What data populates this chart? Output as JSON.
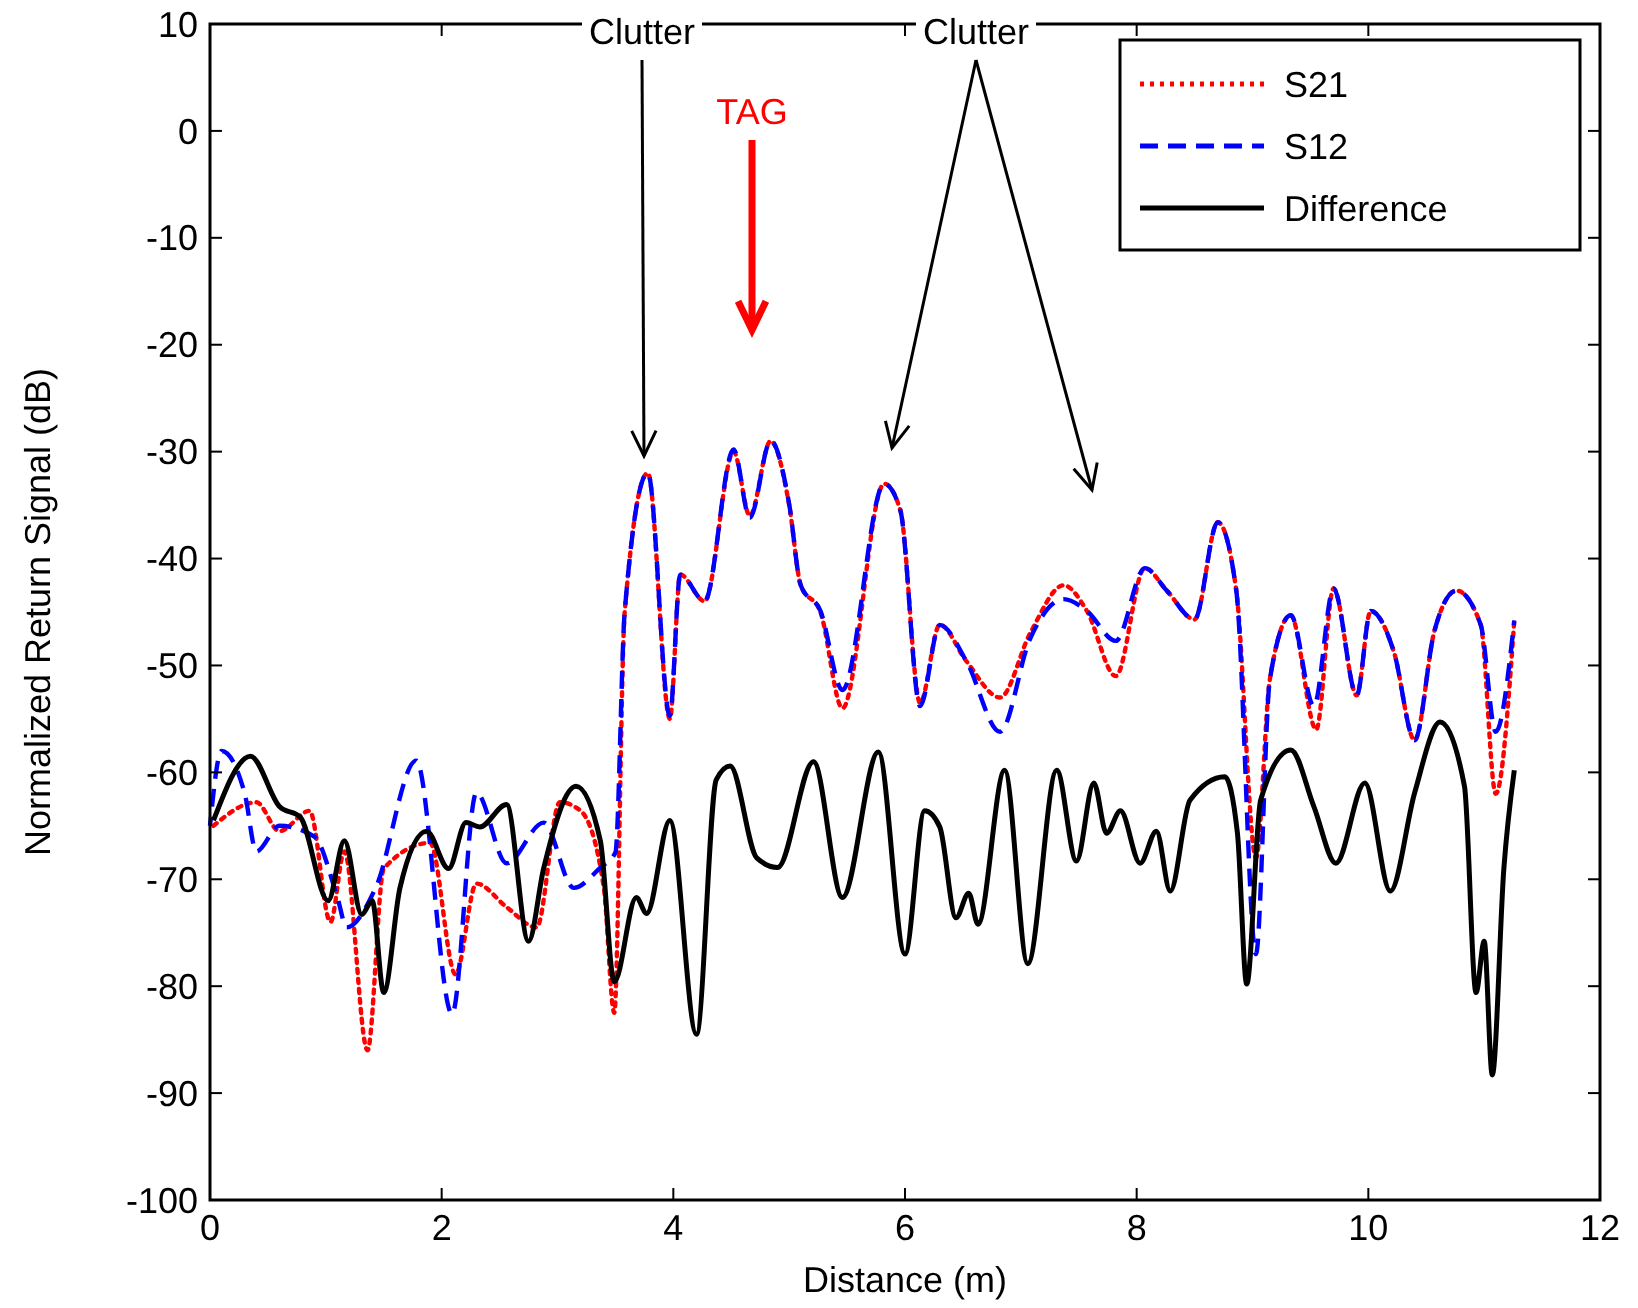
{
  "chart_data": {
    "type": "line",
    "xlabel": "Distance (m)",
    "ylabel": "Normalized Return Signal (dB)",
    "xlim": [
      0,
      12
    ],
    "ylim": [
      -100,
      10
    ],
    "xticks": [
      0,
      2,
      4,
      6,
      8,
      10,
      12
    ],
    "yticks": [
      -100,
      -90,
      -80,
      -70,
      -60,
      -50,
      -40,
      -30,
      -20,
      -10,
      0,
      10
    ],
    "grid": false,
    "legend": "top right",
    "annotations": [
      "Clutter",
      "TAG",
      "Clutter"
    ],
    "series": [
      {
        "name": "S21",
        "color": "#ff0000",
        "line_style": "dotted",
        "x": [
          0.03,
          0.4,
          0.6,
          0.86,
          1.04,
          1.16,
          1.36,
          1.5,
          1.9,
          2.12,
          2.3,
          2.56,
          2.82,
          3.02,
          3.2,
          3.4,
          3.49,
          3.58,
          3.78,
          3.97,
          4.06,
          4.27,
          4.52,
          4.66,
          4.84,
          5.0,
          5.1,
          5.27,
          5.46,
          5.82,
          5.96,
          6.13,
          6.3,
          6.53,
          6.82,
          7.08,
          7.37,
          7.57,
          7.82,
          8.07,
          8.26,
          8.5,
          8.7,
          8.86,
          9.03,
          9.15,
          9.33,
          9.55,
          9.7,
          9.9,
          10.02,
          10.22,
          10.4,
          10.57,
          10.76,
          10.97,
          11.1,
          11.26
        ],
        "values": [
          -65,
          -62.8,
          -65.5,
          -63.6,
          -74,
          -67.4,
          -86,
          -69,
          -66.6,
          -78.9,
          -70.4,
          -72.6,
          -74.5,
          -62.8,
          -63.6,
          -70.8,
          -82.5,
          -45,
          -32,
          -55,
          -41.5,
          -44,
          -30,
          -36,
          -29,
          -35,
          -42.5,
          -45,
          -54,
          -33,
          -35.5,
          -53.5,
          -46.2,
          -49.6,
          -53,
          -47,
          -42.5,
          -44.9,
          -51,
          -40.9,
          -43,
          -45.7,
          -36.6,
          -43,
          -68,
          -51.3,
          -45.3,
          -56,
          -42.8,
          -52.8,
          -44.9,
          -48.7,
          -57,
          -46.8,
          -43,
          -46.2,
          -62,
          -45.8
        ]
      },
      {
        "name": "S12",
        "color": "#0000ff",
        "line_style": "dashed",
        "x": [
          0.0,
          0.1,
          0.3,
          0.4,
          0.6,
          0.9,
          1.1,
          1.18,
          1.43,
          1.78,
          2.09,
          2.3,
          2.56,
          2.88,
          3.14,
          3.37,
          3.5,
          3.58,
          3.78,
          3.97,
          4.06,
          4.27,
          4.52,
          4.66,
          4.84,
          5.0,
          5.1,
          5.27,
          5.46,
          5.82,
          5.96,
          6.13,
          6.3,
          6.53,
          6.82,
          7.08,
          7.37,
          7.57,
          7.82,
          8.07,
          8.26,
          8.5,
          8.7,
          8.86,
          9.03,
          9.15,
          9.33,
          9.53,
          9.7,
          9.9,
          10.02,
          10.22,
          10.4,
          10.57,
          10.76,
          10.97,
          11.1,
          11.26
        ],
        "values": [
          -65,
          -58,
          -62,
          -67.4,
          -65,
          -66,
          -71.7,
          -74.5,
          -70.8,
          -58.9,
          -82.6,
          -61.9,
          -68.5,
          -64.7,
          -70.8,
          -68.9,
          -67.5,
          -45,
          -32,
          -54.7,
          -41.5,
          -44,
          -29.8,
          -36.2,
          -29,
          -34.9,
          -42.5,
          -44.9,
          -52.3,
          -33,
          -35.5,
          -53.8,
          -46.2,
          -49.6,
          -56.2,
          -47.5,
          -43.8,
          -44.9,
          -47.7,
          -40.9,
          -43,
          -45.7,
          -36.6,
          -43,
          -77,
          -51.3,
          -45.3,
          -53.8,
          -42.8,
          -52.8,
          -44.9,
          -48.7,
          -57,
          -46.8,
          -43,
          -46.2,
          -56.2,
          -45.8
        ]
      },
      {
        "name": "Difference",
        "color": "#000000",
        "line_style": "solid",
        "x": [
          0.03,
          0.35,
          0.6,
          0.78,
          1.02,
          1.16,
          1.31,
          1.4,
          1.5,
          1.64,
          1.87,
          2.06,
          2.21,
          2.33,
          2.56,
          2.75,
          2.88,
          3.16,
          3.37,
          3.49,
          3.68,
          3.77,
          3.97,
          4.2,
          4.37,
          4.49,
          4.72,
          4.9,
          5.21,
          5.46,
          5.77,
          6.0,
          6.17,
          6.3,
          6.44,
          6.55,
          6.63,
          6.86,
          7.06,
          7.31,
          7.48,
          7.63,
          7.74,
          7.86,
          8.03,
          8.17,
          8.29,
          8.46,
          8.76,
          8.87,
          8.95,
          9.07,
          9.33,
          9.53,
          9.72,
          9.97,
          10.19,
          10.4,
          10.62,
          10.83,
          10.93,
          11.0,
          11.07,
          11.17,
          11.26
        ],
        "values": [
          -64.5,
          -58.5,
          -63.2,
          -64.2,
          -72,
          -66.4,
          -73.3,
          -72,
          -80.6,
          -70.8,
          -65.5,
          -69,
          -64.7,
          -65.1,
          -63,
          -75.8,
          -69,
          -61.3,
          -66.4,
          -79.6,
          -71.7,
          -73.2,
          -64.5,
          -84.5,
          -60.7,
          -59.4,
          -68,
          -68.9,
          -59,
          -71.7,
          -58.1,
          -77,
          -63.6,
          -65.1,
          -73.6,
          -71.3,
          -74.2,
          -59.8,
          -77.9,
          -59.8,
          -68.3,
          -61,
          -65.7,
          -63.6,
          -68.5,
          -65.5,
          -71.1,
          -62.6,
          -60.4,
          -65.7,
          -79.8,
          -62.6,
          -57.9,
          -63.2,
          -68.5,
          -61,
          -71.1,
          -61.9,
          -55.3,
          -61.3,
          -80.6,
          -75.8,
          -88.3,
          -69,
          -59.8
        ]
      }
    ]
  }
}
